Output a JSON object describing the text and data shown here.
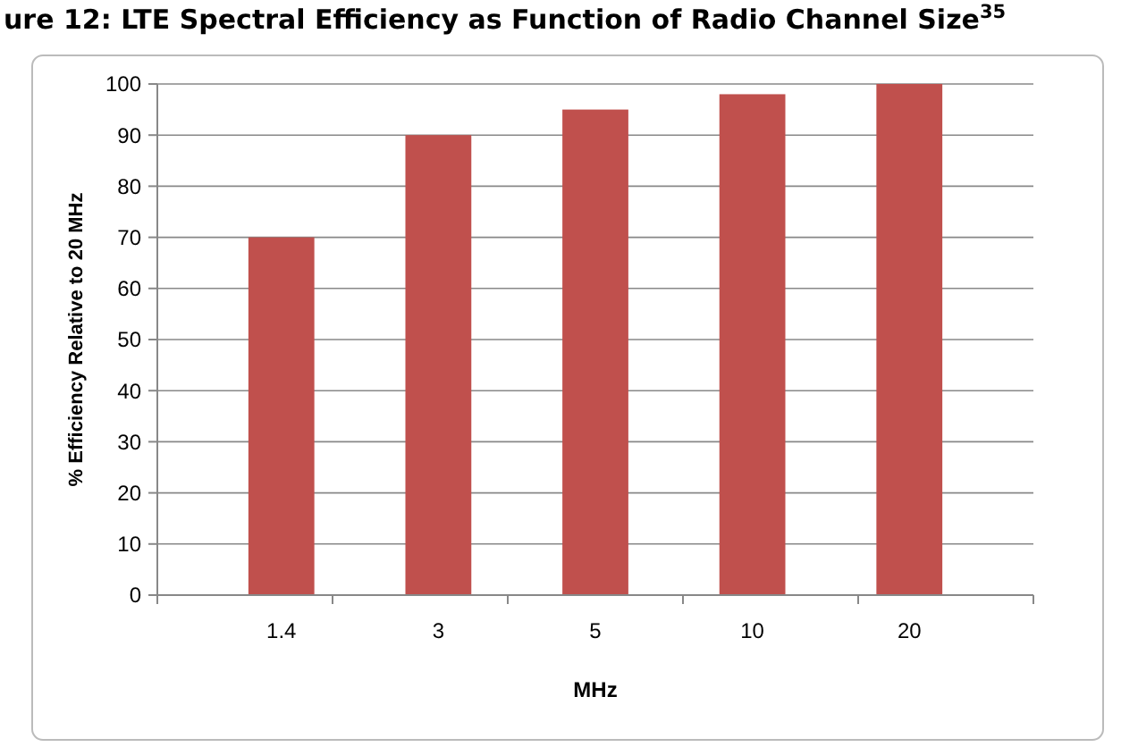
{
  "chart_data": {
    "type": "bar",
    "title": "ure 12: LTE Spectral Efficiency as Function of Radio Channel Size$^{35}$",
    "xlabel": "MHz",
    "ylabel": "% Efficiency  Relative  to 20 MHz",
    "categories": [
      "1.4",
      "3",
      "5",
      "10",
      "20"
    ],
    "values": [
      70,
      90,
      95,
      98,
      100
    ],
    "color": "#c0504d",
    "ylim": [
      0,
      100
    ],
    "yticks": [
      0,
      10,
      20,
      30,
      40,
      50,
      60,
      70,
      80,
      90,
      100
    ],
    "grid": "y"
  }
}
